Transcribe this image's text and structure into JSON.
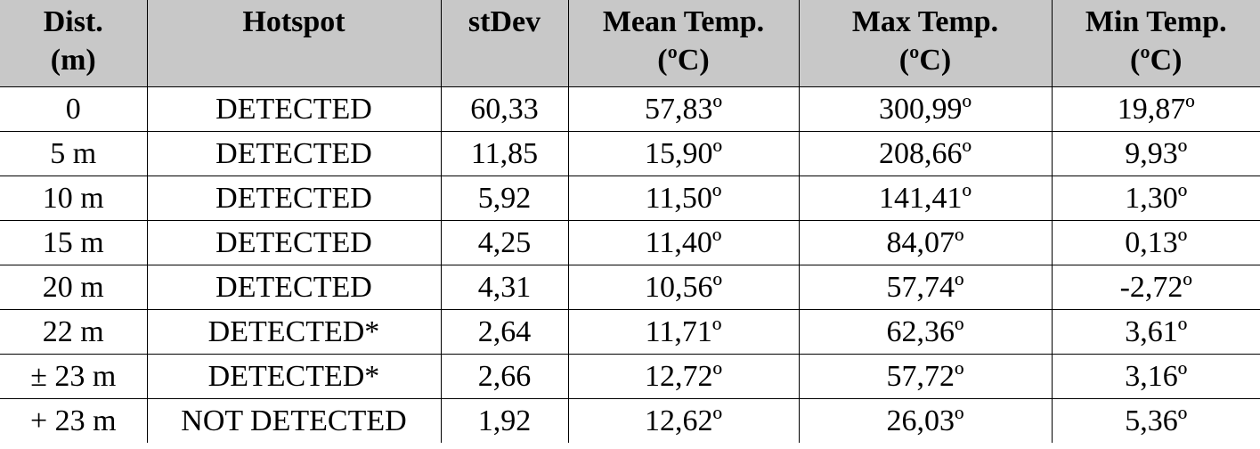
{
  "table": {
    "header": [
      [
        "Dist.",
        "(m)"
      ],
      [
        "Hotspot",
        ""
      ],
      [
        "stDev",
        ""
      ],
      [
        "Mean Temp.",
        "(ºC)"
      ],
      [
        "Max Temp.",
        "(ºC)"
      ],
      [
        "Min Temp.",
        "(ºC)"
      ]
    ],
    "rows": [
      [
        "0",
        "DETECTED",
        "60,33",
        "57,83º",
        "300,99º",
        "19,87º"
      ],
      [
        "5 m",
        "DETECTED",
        "11,85",
        "15,90º",
        "208,66º",
        "9,93º"
      ],
      [
        "10 m",
        "DETECTED",
        "5,92",
        "11,50º",
        "141,41º",
        "1,30º"
      ],
      [
        "15 m",
        "DETECTED",
        "4,25",
        "11,40º",
        "84,07º",
        "0,13º"
      ],
      [
        "20 m",
        "DETECTED",
        "4,31",
        "10,56º",
        "57,74º",
        "-2,72º"
      ],
      [
        "22 m",
        "DETECTED*",
        "2,64",
        "11,71º",
        "62,36º",
        "3,61º"
      ],
      [
        "± 23 m",
        "DETECTED*",
        "2,66",
        "12,72º",
        "57,72º",
        "3,16º"
      ],
      [
        "+ 23 m",
        "NOT DETECTED",
        "1,92",
        "12,62º",
        "26,03º",
        "5,36º"
      ]
    ]
  },
  "colors": {
    "header_background": "#c8c8c8",
    "grid_lines": "#000000"
  }
}
